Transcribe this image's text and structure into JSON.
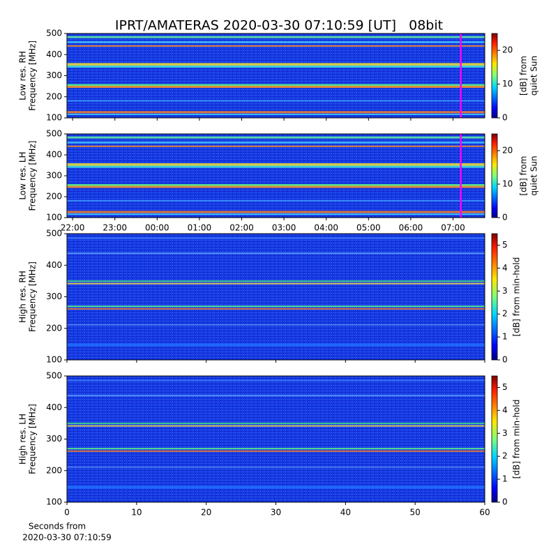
{
  "title": "IPRT/AMATERAS 2020-03-30 07:10:59 [UT]   08bit",
  "chart_data": [
    {
      "type": "heatmap",
      "ylabel": [
        "Low res. RH",
        "Frequency [MHz]"
      ],
      "ylim": [
        100,
        500
      ],
      "yticks": [
        100,
        200,
        300,
        400,
        500
      ],
      "xlim": [
        "21:52",
        "07:45"
      ],
      "xticks": [
        "22:00",
        "23:00",
        "00:00",
        "01:00",
        "02:00",
        "03:00",
        "04:00",
        "05:00",
        "06:00",
        "07:00"
      ],
      "show_xtick_labels": false,
      "cursor": "07:10:59",
      "cursor_color": "#ff00ff",
      "colorbar_label": [
        "[dB] from",
        "quiet Sun"
      ],
      "clim": [
        0,
        25
      ],
      "cticks": [
        0,
        10,
        20
      ],
      "colormap": "jet"
    },
    {
      "type": "heatmap",
      "ylabel": [
        "Low res. LH",
        "Frequency [MHz]"
      ],
      "ylim": [
        100,
        500
      ],
      "yticks": [
        100,
        200,
        300,
        400,
        500
      ],
      "xlim": [
        "21:52",
        "07:45"
      ],
      "xticks": [
        "22:00",
        "23:00",
        "00:00",
        "01:00",
        "02:00",
        "03:00",
        "04:00",
        "05:00",
        "06:00",
        "07:00"
      ],
      "show_xtick_labels": true,
      "cursor": "07:10:59",
      "cursor_color": "#ff00ff",
      "colorbar_label": [
        "[dB] from",
        "quiet Sun"
      ],
      "clim": [
        0,
        25
      ],
      "cticks": [
        0,
        10,
        20
      ],
      "colormap": "jet"
    },
    {
      "type": "heatmap",
      "ylabel": [
        "High res. RH",
        "Frequency [MHz]"
      ],
      "ylim": [
        100,
        500
      ],
      "yticks": [
        100,
        200,
        300,
        400,
        500
      ],
      "xlim": [
        0,
        60
      ],
      "xticks": [
        0,
        10,
        20,
        30,
        40,
        50,
        60
      ],
      "show_xtick_labels": false,
      "colorbar_label": [
        "[dB] from min-hold"
      ],
      "clim": [
        0,
        5.5
      ],
      "cticks": [
        0,
        1,
        2,
        3,
        4,
        5
      ],
      "colormap": "jet"
    },
    {
      "type": "heatmap",
      "ylabel": [
        "High res. LH",
        "Frequency [MHz]"
      ],
      "ylim": [
        100,
        500
      ],
      "yticks": [
        100,
        200,
        300,
        400,
        500
      ],
      "xlim": [
        0,
        60
      ],
      "xticks": [
        0,
        10,
        20,
        30,
        40,
        50,
        60
      ],
      "show_xtick_labels": true,
      "xlabel": [
        "Seconds from",
        "2020-03-30 07:10:59"
      ],
      "colorbar_label": [
        "[dB] from min-hold"
      ],
      "clim": [
        0,
        5.5
      ],
      "cticks": [
        0,
        1,
        2,
        3,
        4,
        5
      ],
      "colormap": "jet"
    }
  ]
}
